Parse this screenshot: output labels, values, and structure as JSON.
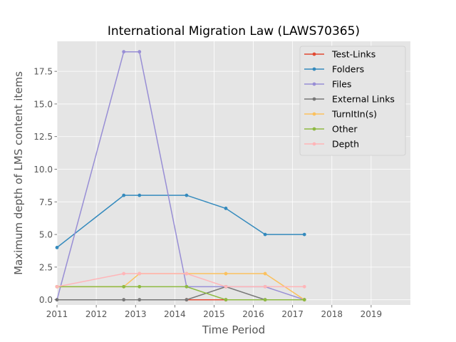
{
  "chart_data": {
    "type": "line",
    "title": "International Migration Law (LAWS70365)",
    "xlabel": "Time Period",
    "ylabel": "Maximum depth of LMS content items",
    "xlim": [
      2011,
      2020
    ],
    "ylim": [
      -0.4,
      19.8
    ],
    "x_ticks": [
      "2011",
      "2012",
      "2013",
      "2014",
      "2015",
      "2016",
      "2017",
      "2018",
      "2019"
    ],
    "y_ticks": [
      "0.0",
      "2.5",
      "5.0",
      "7.5",
      "10.0",
      "12.5",
      "15.0",
      "17.5"
    ],
    "y_tick_values": [
      0,
      2.5,
      5,
      7.5,
      10,
      12.5,
      15,
      17.5
    ],
    "grid": true,
    "legend_position": "top-right",
    "series": [
      {
        "name": "Test-Links",
        "color": "#E24A33",
        "x": [
          2014.3,
          2015.3
        ],
        "y": [
          0,
          0
        ]
      },
      {
        "name": "Folders",
        "color": "#348ABD",
        "x": [
          2011.0,
          2012.7,
          2013.1,
          2014.3,
          2015.3,
          2016.3,
          2017.3
        ],
        "y": [
          4,
          8,
          8,
          8,
          7,
          5,
          5
        ]
      },
      {
        "name": "Files",
        "color": "#988ED5",
        "x": [
          2011.0,
          2012.7,
          2013.1,
          2014.3,
          2015.3,
          2016.3,
          2017.3
        ],
        "y": [
          0,
          19,
          19,
          1,
          1,
          1,
          0
        ]
      },
      {
        "name": "External Links",
        "color": "#777777",
        "x": [
          2011.0,
          2012.7,
          2013.1,
          2014.3,
          2015.3,
          2016.3,
          2017.3
        ],
        "y": [
          0,
          0,
          0,
          0,
          1,
          0,
          0
        ]
      },
      {
        "name": "TurnItIn(s)",
        "color": "#FBC15E",
        "x": [
          2011.0,
          2012.7,
          2013.1,
          2014.3,
          2015.3,
          2016.3,
          2017.3
        ],
        "y": [
          1,
          1,
          2,
          2,
          2,
          2,
          0
        ]
      },
      {
        "name": "Other",
        "color": "#8EBA42",
        "x": [
          2011.0,
          2012.7,
          2013.1,
          2014.3,
          2015.3,
          2016.3,
          2017.3
        ],
        "y": [
          1,
          1,
          1,
          1,
          0,
          0,
          0
        ]
      },
      {
        "name": "Depth",
        "color": "#FFB5B8",
        "x": [
          2011.0,
          2012.7,
          2013.1,
          2014.3,
          2015.3,
          2016.3,
          2017.3
        ],
        "y": [
          1,
          2,
          2,
          2,
          1,
          1,
          1
        ]
      }
    ]
  }
}
